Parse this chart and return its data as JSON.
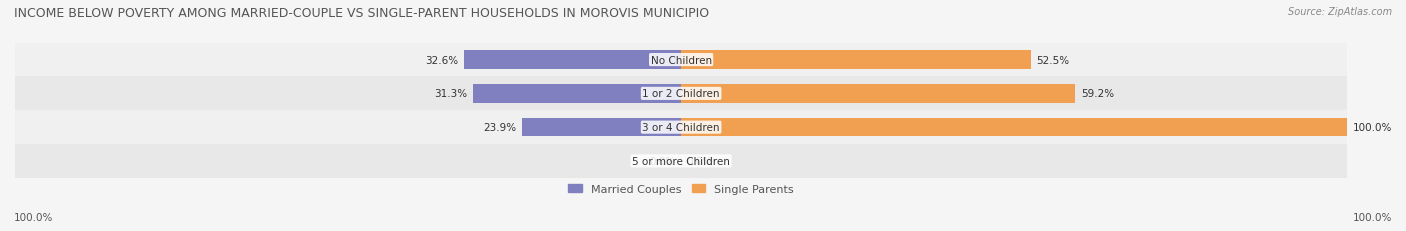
{
  "title": "INCOME BELOW POVERTY AMONG MARRIED-COUPLE VS SINGLE-PARENT HOUSEHOLDS IN MOROVIS MUNICIPIO",
  "source": "Source: ZipAtlas.com",
  "categories": [
    "No Children",
    "1 or 2 Children",
    "3 or 4 Children",
    "5 or more Children"
  ],
  "married_values": [
    32.6,
    31.3,
    23.9,
    0.0
  ],
  "single_values": [
    52.5,
    59.2,
    100.0,
    0.0
  ],
  "married_color": "#8080c0",
  "single_color": "#f0a050",
  "bar_bg_color": "#e8e8e8",
  "row_bg_colors": [
    "#f0f0f0",
    "#e8e8e8"
  ],
  "title_fontsize": 9,
  "label_fontsize": 7.5,
  "tick_fontsize": 7.5,
  "legend_fontsize": 8,
  "max_value": 100.0,
  "left_label": "100.0%",
  "right_label": "100.0%",
  "figsize": [
    14.06,
    2.32
  ],
  "dpi": 100
}
